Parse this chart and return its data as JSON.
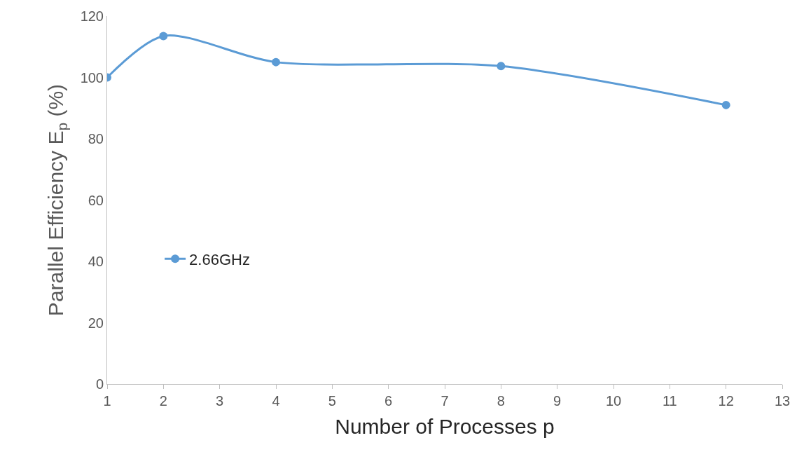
{
  "chart_data": {
    "type": "line",
    "xlabel": "Number of Processes p",
    "ylabel": "Parallel Efficiency E$_{p}$ (%)",
    "x": [
      1,
      2,
      4,
      8,
      12
    ],
    "series": [
      {
        "name": "2.66GHz",
        "color": "#5b9bd5",
        "values": [
          100,
          113.5,
          105,
          103.7,
          91
        ]
      }
    ],
    "xlim": [
      1,
      13
    ],
    "xticks": [
      1,
      2,
      3,
      4,
      5,
      6,
      7,
      8,
      9,
      10,
      11,
      12,
      13
    ],
    "ylim": [
      0,
      120
    ],
    "yticks": [
      0,
      20,
      40,
      60,
      80,
      100,
      120
    ],
    "legend": "left",
    "marker": "circle",
    "line_style": "solid"
  }
}
